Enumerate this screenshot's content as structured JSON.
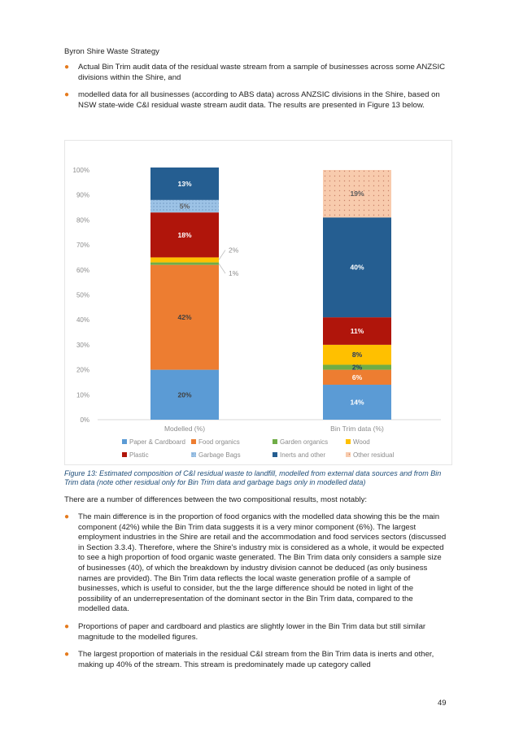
{
  "header": {
    "title": "Byron Shire Waste Strategy"
  },
  "intro_bullets": [
    "Actual Bin Trim audit data of the residual waste stream from a sample of businesses across some ANZSIC divisions within the Shire, and",
    "modelled data for all businesses (according to ABS data) across ANZSIC divisions in the Shire, based on NSW state-wide C&I residual waste stream audit data. The results are presented in Figure 13 below."
  ],
  "chart_data": {
    "type": "bar",
    "stacked": true,
    "categories": [
      "Modelled (%)",
      "Bin Trim data (%)"
    ],
    "ylim": [
      0,
      100
    ],
    "yticks": [
      "0%",
      "10%",
      "20%",
      "30%",
      "40%",
      "50%",
      "60%",
      "70%",
      "80%",
      "90%",
      "100%"
    ],
    "grid": false,
    "legend_position": "bottom",
    "series": [
      {
        "name": "Paper & Cardboard",
        "values": [
          20,
          14
        ],
        "color": "#5b9bd5",
        "labels": [
          "20%",
          "14%"
        ],
        "pattern": false
      },
      {
        "name": "Food organics",
        "values": [
          42,
          6
        ],
        "color": "#ed7d31",
        "labels": [
          "42%",
          "6%"
        ],
        "pattern": false
      },
      {
        "name": "Garden organics",
        "values": [
          1,
          2
        ],
        "color": "#70ad47",
        "labels": [
          "1%",
          "2%"
        ],
        "pattern": false
      },
      {
        "name": "Wood",
        "values": [
          2,
          8
        ],
        "color": "#ffc000",
        "labels": [
          "2%",
          "8%"
        ],
        "pattern": false
      },
      {
        "name": "Plastic",
        "values": [
          18,
          11
        ],
        "color": "#b0150b",
        "labels": [
          "18%",
          "11%"
        ],
        "pattern": false
      },
      {
        "name": "Garbage Bags",
        "values": [
          5,
          0
        ],
        "color": "#9dc3e6",
        "labels": [
          "5%",
          ""
        ],
        "pattern": true
      },
      {
        "name": "Inerts and other",
        "values": [
          13,
          40
        ],
        "color": "#255e91",
        "labels": [
          "13%",
          "40%"
        ],
        "pattern": false
      },
      {
        "name": "Other residual",
        "values": [
          0,
          19
        ],
        "color": "#f8cbad",
        "labels": [
          "",
          "19%"
        ],
        "pattern": true
      }
    ]
  },
  "caption": "Figure 13: Estimated composition of C&I residual waste to landfill, modelled from external data sources and from Bin Trim data (note other residual only for Bin Trim data and garbage bags only in modelled data)",
  "intro_text": "There are a number of differences between the two compositional results, most notably:",
  "discussion_bullets": [
    "The main difference is in the proportion of food organics with the modelled data showing this be the main component (42%) while the Bin Trim data suggests it is a very minor component (6%). The largest employment industries in the Shire are retail and the accommodation and food services sectors (discussed in Section 3.3.4). Therefore, where the Shire's industry mix is considered as a whole, it would be expected to see a high proportion of food organic waste generated. The Bin Trim data only considers a sample size of businesses (40), of which the breakdown by industry division cannot be deduced (as only business names are provided). The Bin Trim data reflects the local waste generation profile of a sample of businesses, which is useful to consider, but the the large difference should be noted in light of the possibility of an underrepresentation of the dominant sector in the Bin Trim data, compared to the modelled data.",
    " Proportions of paper and cardboard and plastics are slightly lower in the Bin Trim data but still similar magnitude to the modelled figures.",
    "The largest proportion of materials in the residual C&I stream from the Bin Trim data is inerts and other, making up 40% of the stream. This stream is predominately made up category called"
  ],
  "footer": {
    "page_number": "49"
  }
}
